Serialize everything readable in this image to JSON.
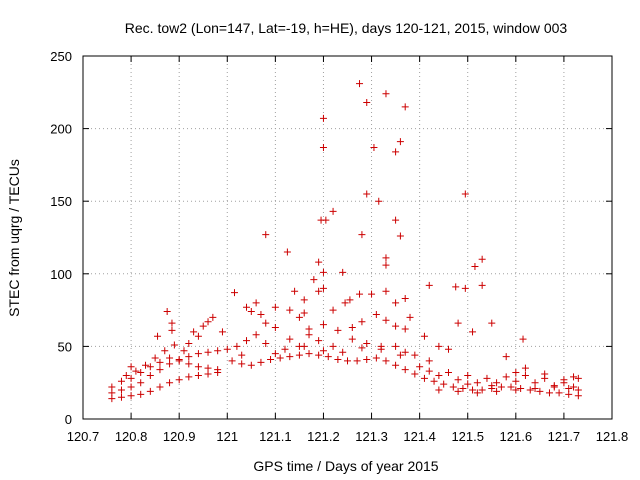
{
  "chart_data": {
    "type": "scatter",
    "title": "Rec. tow2 (Lon=147, Lat=-19, h=HE), days 120-121, 2015, window 003",
    "xlabel": "GPS time / Days of year 2015",
    "ylabel": "STEC from uqrg / TECUs",
    "xlim": [
      120.7,
      121.8
    ],
    "ylim": [
      0,
      250
    ],
    "x_ticks": [
      120.7,
      120.8,
      120.9,
      121.0,
      121.1,
      121.2,
      121.3,
      121.4,
      121.5,
      121.6,
      121.7,
      121.8
    ],
    "x_tick_labels": [
      "120.7",
      "120.8",
      "120.9",
      "121",
      "121.1",
      "121.2",
      "121.3",
      "121.4",
      "121.5",
      "121.6",
      "121.7",
      "121.8"
    ],
    "y_ticks": [
      0,
      50,
      100,
      150,
      200,
      250
    ],
    "y_tick_labels": [
      "0",
      "50",
      "100",
      "150",
      "200",
      "250"
    ],
    "grid": true,
    "marker": "+",
    "marker_color": "#cc0000",
    "series": [
      {
        "name": "",
        "points": [
          [
            121.275,
            231
          ],
          [
            121.29,
            218
          ],
          [
            121.33,
            224
          ],
          [
            121.37,
            215
          ],
          [
            121.2,
            207
          ],
          [
            121.2,
            187
          ],
          [
            121.305,
            187
          ],
          [
            121.36,
            191
          ],
          [
            121.35,
            184
          ],
          [
            121.29,
            155
          ],
          [
            121.315,
            150
          ],
          [
            121.22,
            143
          ],
          [
            121.195,
            137
          ],
          [
            121.205,
            137
          ],
          [
            121.35,
            137
          ],
          [
            121.28,
            127
          ],
          [
            121.36,
            126
          ],
          [
            121.08,
            127
          ],
          [
            121.125,
            115
          ],
          [
            121.495,
            155
          ],
          [
            121.515,
            105
          ],
          [
            121.53,
            110
          ],
          [
            121.33,
            111
          ],
          [
            121.33,
            106
          ],
          [
            121.19,
            108
          ],
          [
            121.2,
            101
          ],
          [
            121.24,
            101
          ],
          [
            121.2,
            90
          ],
          [
            121.18,
            96
          ],
          [
            121.16,
            82
          ],
          [
            121.19,
            88
          ],
          [
            121.255,
            82
          ],
          [
            121.275,
            86
          ],
          [
            121.3,
            86
          ],
          [
            121.33,
            88
          ],
          [
            121.35,
            80
          ],
          [
            121.37,
            83
          ],
          [
            121.42,
            92
          ],
          [
            121.475,
            91
          ],
          [
            121.495,
            90
          ],
          [
            121.53,
            92
          ],
          [
            121.55,
            66
          ],
          [
            121.58,
            43
          ],
          [
            121.615,
            55
          ],
          [
            121.015,
            87
          ],
          [
            120.875,
            74
          ],
          [
            120.885,
            66
          ],
          [
            120.885,
            61
          ],
          [
            120.855,
            57
          ],
          [
            121.05,
            74
          ],
          [
            121.06,
            80
          ],
          [
            121.07,
            72
          ],
          [
            121.04,
            77
          ],
          [
            121.08,
            66
          ],
          [
            121.1,
            63
          ],
          [
            121.1,
            77
          ],
          [
            121.14,
            88
          ],
          [
            121.13,
            75
          ],
          [
            121.15,
            70
          ],
          [
            121.16,
            73
          ],
          [
            121.17,
            62
          ],
          [
            121.2,
            65
          ],
          [
            121.22,
            75
          ],
          [
            121.23,
            61
          ],
          [
            121.245,
            80
          ],
          [
            121.26,
            63
          ],
          [
            121.28,
            67
          ],
          [
            121.31,
            72
          ],
          [
            121.33,
            68
          ],
          [
            121.35,
            64
          ],
          [
            121.37,
            62
          ],
          [
            121.38,
            70
          ],
          [
            121.41,
            57
          ],
          [
            121.44,
            50
          ],
          [
            121.46,
            48
          ],
          [
            121.48,
            66
          ],
          [
            121.51,
            60
          ],
          [
            121.1,
            45
          ],
          [
            121.13,
            55
          ],
          [
            121.15,
            50
          ],
          [
            121.17,
            58
          ],
          [
            121.19,
            54
          ],
          [
            121.22,
            50
          ],
          [
            121.26,
            55
          ],
          [
            121.29,
            52
          ],
          [
            121.32,
            48
          ],
          [
            121.35,
            50
          ],
          [
            121.37,
            46
          ],
          [
            121.39,
            44
          ],
          [
            121.42,
            40
          ],
          [
            120.95,
            64
          ],
          [
            120.93,
            60
          ],
          [
            120.97,
            70
          ],
          [
            120.96,
            67
          ],
          [
            120.99,
            60
          ],
          [
            120.91,
            47
          ],
          [
            120.92,
            52
          ],
          [
            120.94,
            57
          ],
          [
            120.89,
            51
          ],
          [
            120.87,
            47
          ],
          [
            121.02,
            50
          ],
          [
            121.04,
            54
          ],
          [
            121.06,
            58
          ],
          [
            121.08,
            52
          ],
          [
            121.03,
            44
          ],
          [
            120.76,
            18
          ],
          [
            120.78,
            20
          ],
          [
            120.8,
            22
          ],
          [
            120.82,
            25
          ],
          [
            120.84,
            30
          ],
          [
            120.86,
            34
          ],
          [
            120.88,
            38
          ],
          [
            120.9,
            41
          ],
          [
            120.92,
            43
          ],
          [
            120.94,
            45
          ],
          [
            120.96,
            46
          ],
          [
            120.98,
            47
          ],
          [
            121.0,
            48
          ],
          [
            120.76,
            14
          ],
          [
            120.78,
            15
          ],
          [
            120.8,
            16
          ],
          [
            120.82,
            17
          ],
          [
            120.84,
            19
          ],
          [
            120.86,
            22
          ],
          [
            120.88,
            25
          ],
          [
            120.9,
            27
          ],
          [
            120.92,
            29
          ],
          [
            120.94,
            30
          ],
          [
            120.96,
            31
          ],
          [
            120.98,
            32
          ],
          [
            120.76,
            22
          ],
          [
            120.78,
            26
          ],
          [
            120.8,
            28
          ],
          [
            120.82,
            32
          ],
          [
            120.84,
            36
          ],
          [
            120.86,
            39
          ],
          [
            120.88,
            42
          ],
          [
            120.9,
            40
          ],
          [
            120.92,
            38
          ],
          [
            120.94,
            36
          ],
          [
            120.96,
            35
          ],
          [
            120.98,
            34
          ],
          [
            121.01,
            40
          ],
          [
            121.03,
            38
          ],
          [
            121.05,
            37
          ],
          [
            121.07,
            39
          ],
          [
            121.09,
            41
          ],
          [
            121.11,
            42
          ],
          [
            121.13,
            43
          ],
          [
            121.15,
            44
          ],
          [
            121.17,
            45
          ],
          [
            121.19,
            44
          ],
          [
            121.21,
            43
          ],
          [
            121.23,
            41
          ],
          [
            121.25,
            40
          ],
          [
            121.27,
            40
          ],
          [
            121.29,
            41
          ],
          [
            121.31,
            42
          ],
          [
            121.33,
            40
          ],
          [
            121.35,
            37
          ],
          [
            121.37,
            34
          ],
          [
            121.39,
            31
          ],
          [
            121.41,
            28
          ],
          [
            121.43,
            26
          ],
          [
            121.45,
            24
          ],
          [
            121.47,
            22
          ],
          [
            121.49,
            21
          ],
          [
            121.51,
            20
          ],
          [
            121.53,
            20
          ],
          [
            121.55,
            21
          ],
          [
            121.57,
            22
          ],
          [
            121.59,
            22
          ],
          [
            121.61,
            21
          ],
          [
            121.63,
            20
          ],
          [
            121.65,
            19
          ],
          [
            121.67,
            18
          ],
          [
            121.69,
            18
          ],
          [
            121.71,
            17
          ],
          [
            121.73,
            16
          ],
          [
            121.12,
            48
          ],
          [
            121.16,
            50
          ],
          [
            121.2,
            47
          ],
          [
            121.24,
            46
          ],
          [
            121.28,
            49
          ],
          [
            121.32,
            50
          ],
          [
            121.36,
            44
          ],
          [
            121.4,
            36
          ],
          [
            121.44,
            30
          ],
          [
            121.48,
            27
          ],
          [
            121.52,
            25
          ],
          [
            121.56,
            25
          ],
          [
            121.6,
            26
          ],
          [
            121.64,
            25
          ],
          [
            121.68,
            23
          ],
          [
            121.72,
            22
          ],
          [
            121.42,
            33
          ],
          [
            121.46,
            32
          ],
          [
            121.5,
            30
          ],
          [
            121.54,
            28
          ],
          [
            121.58,
            29
          ],
          [
            121.62,
            30
          ],
          [
            121.66,
            28
          ],
          [
            121.7,
            27
          ],
          [
            121.73,
            28
          ],
          [
            121.44,
            20
          ],
          [
            121.48,
            19
          ],
          [
            121.52,
            18
          ],
          [
            121.56,
            19
          ],
          [
            121.6,
            20
          ],
          [
            121.64,
            21
          ],
          [
            121.68,
            22
          ],
          [
            121.71,
            21
          ],
          [
            121.73,
            20
          ],
          [
            120.8,
            36
          ],
          [
            120.81,
            33
          ],
          [
            120.83,
            37
          ],
          [
            120.79,
            30
          ],
          [
            120.85,
            42
          ],
          [
            121.5,
            24
          ],
          [
            121.55,
            23
          ],
          [
            121.6,
            32
          ],
          [
            121.62,
            35
          ],
          [
            121.66,
            31
          ],
          [
            121.7,
            25
          ],
          [
            121.72,
            29
          ]
        ]
      }
    ]
  }
}
